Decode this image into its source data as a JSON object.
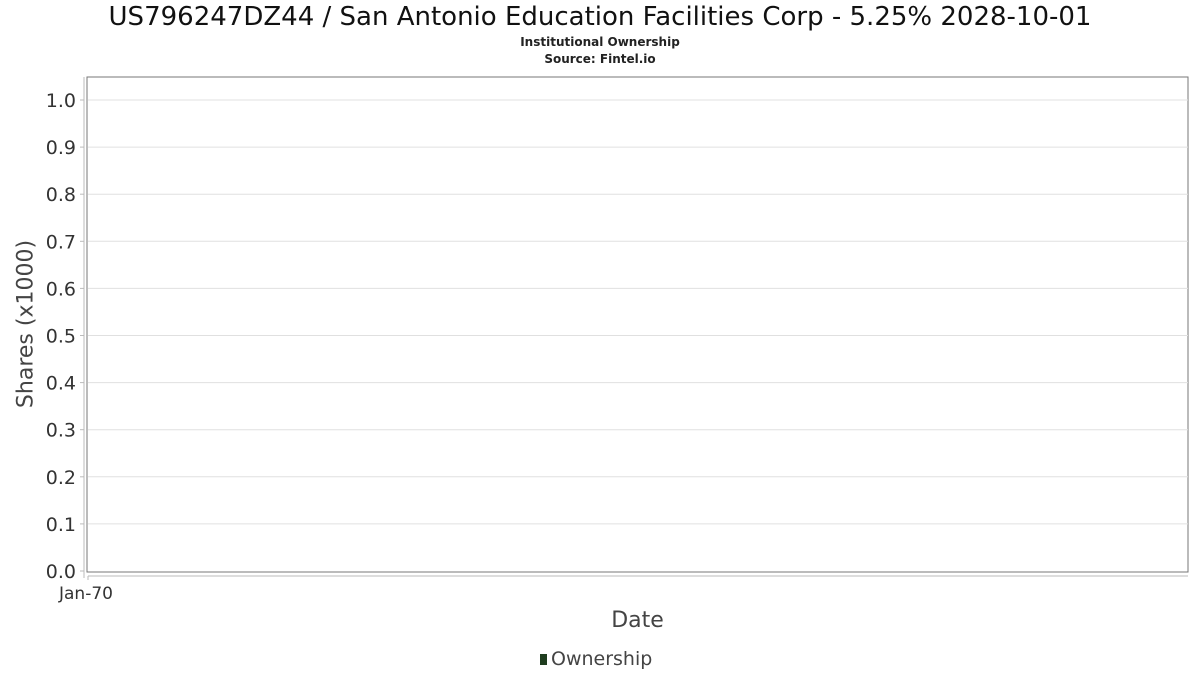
{
  "chart_data": {
    "type": "line",
    "title": "US796247DZ44 / San Antonio Education Facilities Corp - 5.25% 2028-10-01",
    "subtitle": "Institutional Ownership",
    "source": "Source: Fintel.io",
    "xlabel": "Date",
    "ylabel": "Shares (x1000)",
    "ylim": [
      0,
      1.0
    ],
    "y_ticks": [
      "0.0",
      "0.1",
      "0.2",
      "0.3",
      "0.4",
      "0.5",
      "0.6",
      "0.7",
      "0.8",
      "0.9",
      "1.0"
    ],
    "x_ticks": [
      "Jan-70"
    ],
    "grid": true,
    "legend_position": "bottom",
    "series": [
      {
        "name": "Ownership",
        "color": "#1f3d1f",
        "values": []
      }
    ]
  }
}
